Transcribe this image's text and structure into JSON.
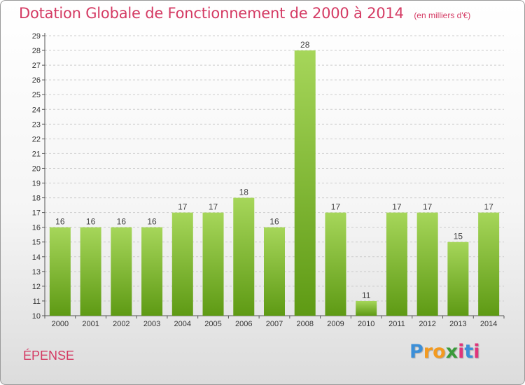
{
  "page": {
    "title": "Dotation Globale de Fonctionnement de 2000 à 2014",
    "subtitle": "(en milliers d'€)",
    "commune": "ÉPENSE",
    "logo_letters": [
      "P",
      "r",
      "o",
      "x",
      "i",
      "t",
      "i"
    ],
    "logo_colors": [
      "#3c8fd8",
      "#f39a1f",
      "#f39a1f",
      "#3a9a3a",
      "#e0357a",
      "#3c8fd8",
      "#e0357a"
    ]
  },
  "colors": {
    "title": "#d43a63",
    "bar_top": "#a6d65a",
    "bar_bottom": "#5e9a14",
    "grid": "#cccccc",
    "axis": "#555555"
  },
  "chart_data": {
    "type": "bar",
    "title": "Dotation Globale de Fonctionnement de 2000 à 2014",
    "subtitle": "(en milliers d'€)",
    "xlabel": "",
    "ylabel": "",
    "categories": [
      "2000",
      "2001",
      "2002",
      "2003",
      "2004",
      "2005",
      "2006",
      "2007",
      "2008",
      "2009",
      "2010",
      "2011",
      "2012",
      "2013",
      "2014"
    ],
    "values": [
      16,
      16,
      16,
      16,
      17,
      17,
      18,
      16,
      28,
      17,
      11,
      17,
      17,
      15,
      17
    ],
    "ylim": [
      10,
      29
    ],
    "yticks": [
      10,
      11,
      12,
      13,
      14,
      15,
      16,
      17,
      18,
      19,
      20,
      21,
      22,
      23,
      24,
      25,
      26,
      27,
      28,
      29
    ],
    "grid": true,
    "data_labels": true
  }
}
